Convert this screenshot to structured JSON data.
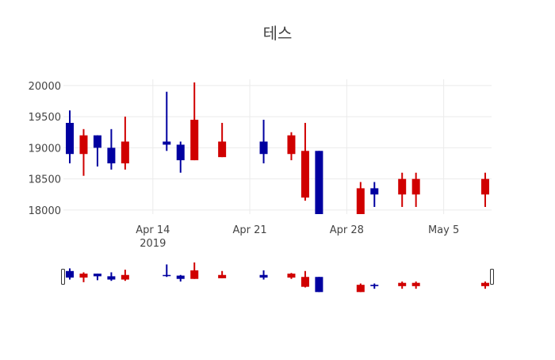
{
  "chart_data": {
    "type": "candlestick",
    "title": "테스",
    "xlabel": "",
    "ylabel": "",
    "ylim": [
      17935,
      20100
    ],
    "xlim": [
      "2019-04-07T13:00",
      "2019-05-08T11:00"
    ],
    "yticks": [
      18000,
      18500,
      19000,
      19500,
      20000
    ],
    "ytick_labels": [
      "18000",
      "18500",
      "19000",
      "19500",
      "20000"
    ],
    "xticks": [
      "2019-04-14",
      "2019-04-21",
      "2019-04-28",
      "2019-05-05"
    ],
    "xtick_labels": [
      [
        "Apr 14",
        "2019"
      ],
      [
        "Apr 21",
        ""
      ],
      [
        "Apr 28",
        ""
      ],
      [
        "May 5",
        ""
      ]
    ],
    "grid": true,
    "rangeslider": true,
    "increasing_color": "#d00000",
    "decreasing_color": "#0000a0",
    "x": [
      "2019-04-08",
      "2019-04-09",
      "2019-04-10",
      "2019-04-11",
      "2019-04-12",
      "2019-04-15",
      "2019-04-16",
      "2019-04-17",
      "2019-04-19",
      "2019-04-22",
      "2019-04-24",
      "2019-04-25",
      "2019-04-26",
      "2019-04-29",
      "2019-04-30",
      "2019-05-02",
      "2019-05-03",
      "2019-05-08"
    ],
    "open": [
      19400,
      18900,
      19200,
      19000,
      18750,
      19100,
      19050,
      18800,
      18850,
      19100,
      18900,
      18200,
      18950,
      17800,
      18350,
      18250,
      18250,
      18250
    ],
    "high": [
      19600,
      19300,
      19200,
      19300,
      19500,
      19900,
      19100,
      20050,
      19400,
      19450,
      19250,
      19400,
      18950,
      18450,
      18450,
      18600,
      18600,
      18600
    ],
    "low": [
      18750,
      18550,
      18700,
      18650,
      18650,
      18950,
      18600,
      18800,
      18850,
      18750,
      18800,
      18150,
      17800,
      17800,
      18050,
      18050,
      18050,
      18050
    ],
    "close": [
      18900,
      19200,
      19000,
      18750,
      19100,
      19050,
      18800,
      19450,
      19100,
      18900,
      19200,
      18950,
      17800,
      18350,
      18250,
      18500,
      18500,
      18500
    ]
  }
}
